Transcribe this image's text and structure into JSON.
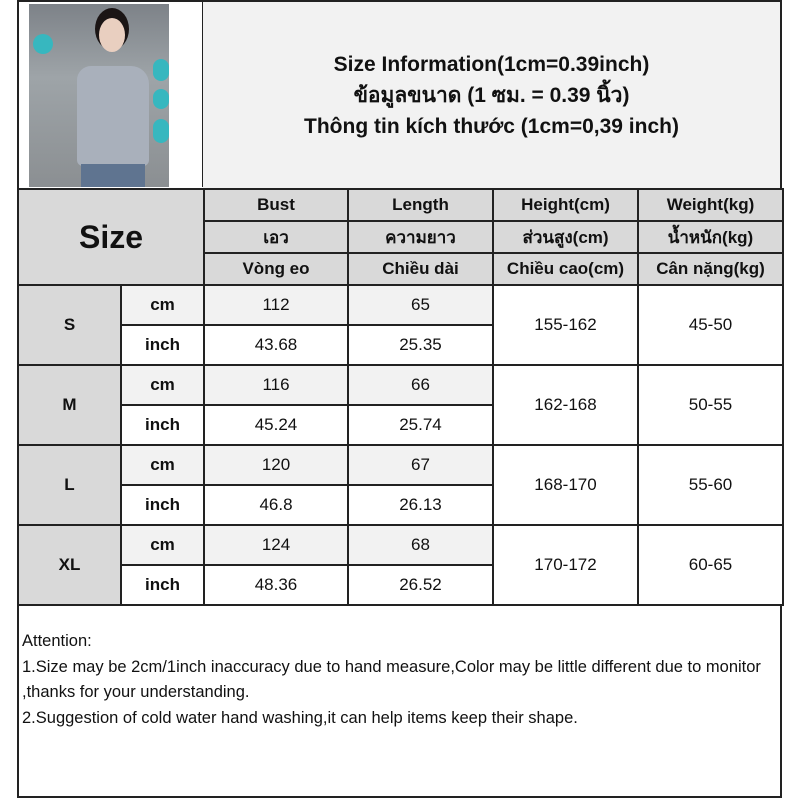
{
  "title": {
    "lines": [
      "Size Information(1cm=0.39inch)",
      "ข้อมูลขนาด (1 ซม. = 0.39 นิ้ว)",
      "Thông tin kích thước (1cm=0,39 inch)"
    ]
  },
  "table": {
    "size_label": "Size",
    "headers": [
      [
        "Bust",
        "เอว",
        "Vòng eo"
      ],
      [
        "Length",
        "ความยาว",
        "Chiều dài"
      ],
      [
        "Height(cm)",
        "ส่วนสูง(cm)",
        "Chiều cao(cm)"
      ],
      [
        "Weight(kg)",
        "น้ำหนัก(kg)",
        "Cân nặng(kg)"
      ]
    ],
    "rows": [
      {
        "size": "S",
        "cm_label": "cm",
        "inch_label": "inch",
        "bust_cm": "112",
        "length_cm": "65",
        "bust_inch": "43.68",
        "length_inch": "25.35",
        "height": "155-162",
        "weight": "45-50"
      },
      {
        "size": "M",
        "cm_label": "cm",
        "inch_label": "inch",
        "bust_cm": "116",
        "length_cm": "66",
        "bust_inch": "45.24",
        "length_inch": "25.74",
        "height": "162-168",
        "weight": "50-55"
      },
      {
        "size": "L",
        "cm_label": "cm",
        "inch_label": "inch",
        "bust_cm": "120",
        "length_cm": "67",
        "bust_inch": "46.8",
        "length_inch": "26.13",
        "height": "168-170",
        "weight": "55-60"
      },
      {
        "size": "XL",
        "cm_label": "cm",
        "inch_label": "inch",
        "bust_cm": "124",
        "length_cm": "68",
        "bust_inch": "48.36",
        "length_inch": "26.52",
        "height": "170-172",
        "weight": "60-65"
      }
    ]
  },
  "notes": {
    "heading": "Attention:",
    "items": [
      "1.Size may be 2cm/1inch inaccuracy due to hand measure,Color may be little different due to monitor ,thanks for your understanding.",
      "2.Suggestion of cold water hand washing,it can help items keep their shape."
    ]
  },
  "colors": {
    "header_bg": "#d9d9d9",
    "title_bg": "#f2f2f2",
    "badge": "#37b7bf"
  }
}
